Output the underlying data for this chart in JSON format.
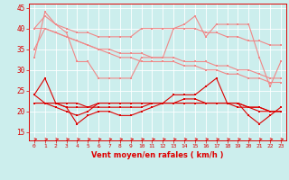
{
  "x": [
    0,
    1,
    2,
    3,
    4,
    5,
    6,
    7,
    8,
    9,
    10,
    11,
    12,
    13,
    14,
    15,
    16,
    17,
    18,
    19,
    20,
    21,
    22,
    23
  ],
  "line1": [
    33,
    44,
    41,
    39,
    32,
    32,
    28,
    28,
    28,
    28,
    33,
    33,
    33,
    40,
    41,
    43,
    38,
    41,
    41,
    41,
    41,
    33,
    26,
    32
  ],
  "line2": [
    40,
    43,
    41,
    40,
    39,
    39,
    38,
    38,
    38,
    38,
    40,
    40,
    40,
    40,
    40,
    40,
    39,
    39,
    38,
    38,
    37,
    37,
    36,
    36
  ],
  "line3": [
    40,
    40,
    39,
    38,
    37,
    36,
    35,
    35,
    34,
    34,
    34,
    33,
    33,
    33,
    32,
    32,
    32,
    31,
    31,
    30,
    30,
    29,
    28,
    28
  ],
  "line4": [
    35,
    40,
    39,
    38,
    37,
    36,
    35,
    34,
    33,
    33,
    32,
    32,
    32,
    32,
    31,
    31,
    30,
    30,
    29,
    29,
    28,
    28,
    27,
    27
  ],
  "line5": [
    24,
    28,
    22,
    21,
    17,
    19,
    20,
    20,
    19,
    19,
    20,
    21,
    22,
    24,
    24,
    24,
    26,
    28,
    22,
    22,
    19,
    17,
    19,
    21
  ],
  "line6": [
    22,
    22,
    22,
    21,
    21,
    21,
    22,
    22,
    22,
    22,
    22,
    22,
    22,
    22,
    22,
    22,
    22,
    22,
    22,
    22,
    21,
    21,
    20,
    20
  ],
  "line7": [
    22,
    22,
    22,
    22,
    22,
    21,
    21,
    21,
    21,
    21,
    21,
    22,
    22,
    22,
    22,
    22,
    22,
    22,
    22,
    22,
    21,
    21,
    20,
    20
  ],
  "line8": [
    24,
    22,
    21,
    20,
    19,
    20,
    22,
    22,
    22,
    22,
    22,
    22,
    22,
    22,
    23,
    23,
    22,
    22,
    22,
    21,
    21,
    20,
    20,
    20
  ],
  "xlabel": "Vent moyen/en rafales ( km/h )",
  "yticks": [
    15,
    20,
    25,
    30,
    35,
    40,
    45
  ],
  "xticks": [
    0,
    1,
    2,
    3,
    4,
    5,
    6,
    7,
    8,
    9,
    10,
    11,
    12,
    13,
    14,
    15,
    16,
    17,
    18,
    19,
    20,
    21,
    22,
    23
  ],
  "bg_color": "#cceeed",
  "light_red": "#f08888",
  "red": "#dd0000",
  "grid_color": "#ffffff",
  "ymin": 13,
  "ymax": 46
}
